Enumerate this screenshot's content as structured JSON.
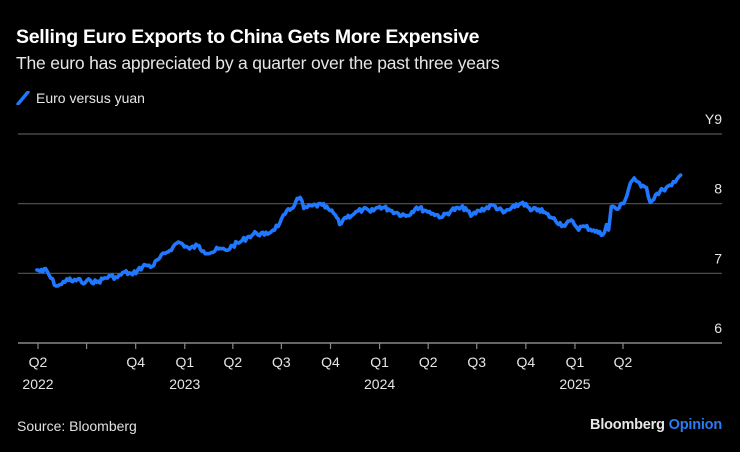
{
  "header": {
    "title": "Selling Euro Exports to China Gets More Expensive",
    "subtitle": "The euro has appreciated by a quarter over the past three years"
  },
  "legend": {
    "items": [
      {
        "label": "Euro versus yuan",
        "color": "#1f78ff"
      }
    ]
  },
  "footer": {
    "source": "Source: Bloomberg",
    "brand_primary": "Bloomberg",
    "brand_secondary": "Opinion",
    "brand_secondary_color": "#2a7bf4"
  },
  "chart_data": {
    "type": "line",
    "title": "Selling Euro Exports to China Gets More Expensive",
    "subtitle": "The euro has appreciated by a quarter over the past three years",
    "xlabel": "",
    "ylabel": "",
    "y_unit_prefix": "Y",
    "ylim": [
      6,
      9
    ],
    "yticks": [
      6,
      7,
      8,
      9
    ],
    "ytick_labels": [
      "6",
      "7",
      "8",
      "Y9"
    ],
    "grid": true,
    "legend_position": "top-left",
    "x_axis_type": "date",
    "x_range": [
      "2022-03-07",
      "2025-09-30"
    ],
    "xticks": [
      {
        "date": "2022-04-01",
        "label": "Q2",
        "year": "2022"
      },
      {
        "date": "2022-07-01",
        "label": "",
        "year": ""
      },
      {
        "date": "2022-10-01",
        "label": "Q4",
        "year": ""
      },
      {
        "date": "2023-01-01",
        "label": "Q1",
        "year": "2023"
      },
      {
        "date": "2023-04-01",
        "label": "Q2",
        "year": ""
      },
      {
        "date": "2023-07-01",
        "label": "Q3",
        "year": ""
      },
      {
        "date": "2023-10-01",
        "label": "Q4",
        "year": ""
      },
      {
        "date": "2024-01-01",
        "label": "Q1",
        "year": "2024"
      },
      {
        "date": "2024-04-01",
        "label": "Q2",
        "year": ""
      },
      {
        "date": "2024-07-01",
        "label": "Q3",
        "year": ""
      },
      {
        "date": "2024-10-01",
        "label": "Q4",
        "year": ""
      },
      {
        "date": "2025-01-01",
        "label": "Q1",
        "year": "2025"
      },
      {
        "date": "2025-04-01",
        "label": "Q2",
        "year": ""
      }
    ],
    "series": [
      {
        "name": "Euro versus yuan",
        "color": "#1f78ff",
        "points": [
          [
            "2022-03-30",
            7.05
          ],
          [
            "2022-04-10",
            7.02
          ],
          [
            "2022-04-15",
            7.07
          ],
          [
            "2022-04-25",
            6.93
          ],
          [
            "2022-05-05",
            6.82
          ],
          [
            "2022-05-15",
            6.84
          ],
          [
            "2022-05-25",
            6.92
          ],
          [
            "2022-06-05",
            6.88
          ],
          [
            "2022-06-15",
            6.92
          ],
          [
            "2022-06-25",
            6.85
          ],
          [
            "2022-07-08",
            6.9
          ],
          [
            "2022-07-20",
            6.87
          ],
          [
            "2022-08-01",
            6.92
          ],
          [
            "2022-08-15",
            6.96
          ],
          [
            "2022-08-28",
            6.94
          ],
          [
            "2022-09-10",
            7.02
          ],
          [
            "2022-09-25",
            6.98
          ],
          [
            "2022-10-05",
            7.05
          ],
          [
            "2022-10-20",
            7.12
          ],
          [
            "2022-11-01",
            7.1
          ],
          [
            "2022-11-15",
            7.22
          ],
          [
            "2022-11-28",
            7.3
          ],
          [
            "2022-12-10",
            7.38
          ],
          [
            "2022-12-20",
            7.45
          ],
          [
            "2022-12-28",
            7.42
          ],
          [
            "2023-01-10",
            7.35
          ],
          [
            "2023-01-25",
            7.4
          ],
          [
            "2023-02-05",
            7.32
          ],
          [
            "2023-02-20",
            7.3
          ],
          [
            "2023-03-05",
            7.35
          ],
          [
            "2023-03-20",
            7.33
          ],
          [
            "2023-04-01",
            7.4
          ],
          [
            "2023-04-15",
            7.45
          ],
          [
            "2023-05-01",
            7.53
          ],
          [
            "2023-05-15",
            7.58
          ],
          [
            "2023-05-30",
            7.55
          ],
          [
            "2023-06-15",
            7.62
          ],
          [
            "2023-06-28",
            7.72
          ],
          [
            "2023-07-08",
            7.85
          ],
          [
            "2023-07-20",
            7.93
          ],
          [
            "2023-07-28",
            8.03
          ],
          [
            "2023-08-05",
            8.09
          ],
          [
            "2023-08-12",
            7.93
          ],
          [
            "2023-08-28",
            7.97
          ],
          [
            "2023-09-15",
            7.98
          ],
          [
            "2023-09-30",
            7.9
          ],
          [
            "2023-10-10",
            7.84
          ],
          [
            "2023-10-18",
            7.7
          ],
          [
            "2023-10-28",
            7.8
          ],
          [
            "2023-11-15",
            7.86
          ],
          [
            "2023-12-01",
            7.92
          ],
          [
            "2023-12-15",
            7.88
          ],
          [
            "2024-01-01",
            7.96
          ],
          [
            "2024-01-18",
            7.92
          ],
          [
            "2024-02-05",
            7.86
          ],
          [
            "2024-02-22",
            7.83
          ],
          [
            "2024-03-10",
            7.95
          ],
          [
            "2024-03-28",
            7.9
          ],
          [
            "2024-04-10",
            7.86
          ],
          [
            "2024-04-28",
            7.81
          ],
          [
            "2024-05-15",
            7.91
          ],
          [
            "2024-06-10",
            7.94
          ],
          [
            "2024-06-20",
            7.82
          ],
          [
            "2024-07-05",
            7.9
          ],
          [
            "2024-08-01",
            7.98
          ],
          [
            "2024-08-20",
            7.87
          ],
          [
            "2024-09-10",
            7.95
          ],
          [
            "2024-09-25",
            8.02
          ],
          [
            "2024-10-10",
            7.9
          ],
          [
            "2024-10-25",
            7.92
          ],
          [
            "2024-11-20",
            7.79
          ],
          [
            "2024-12-10",
            7.69
          ],
          [
            "2024-12-28",
            7.75
          ],
          [
            "2025-01-05",
            7.65
          ],
          [
            "2025-01-20",
            7.67
          ],
          [
            "2025-02-05",
            7.62
          ],
          [
            "2025-02-22",
            7.55
          ],
          [
            "2025-03-01",
            7.7
          ],
          [
            "2025-03-05",
            7.62
          ],
          [
            "2025-03-10",
            7.96
          ],
          [
            "2025-03-22",
            7.92
          ],
          [
            "2025-04-05",
            8.05
          ],
          [
            "2025-04-15",
            8.3
          ],
          [
            "2025-04-22",
            8.37
          ],
          [
            "2025-05-05",
            8.24
          ],
          [
            "2025-05-15",
            8.23
          ],
          [
            "2025-05-22",
            8.02
          ],
          [
            "2025-06-01",
            8.13
          ],
          [
            "2025-06-15",
            8.2
          ],
          [
            "2025-07-01",
            8.26
          ],
          [
            "2025-07-08",
            8.31
          ],
          [
            "2025-07-18",
            8.41
          ]
        ]
      }
    ]
  }
}
